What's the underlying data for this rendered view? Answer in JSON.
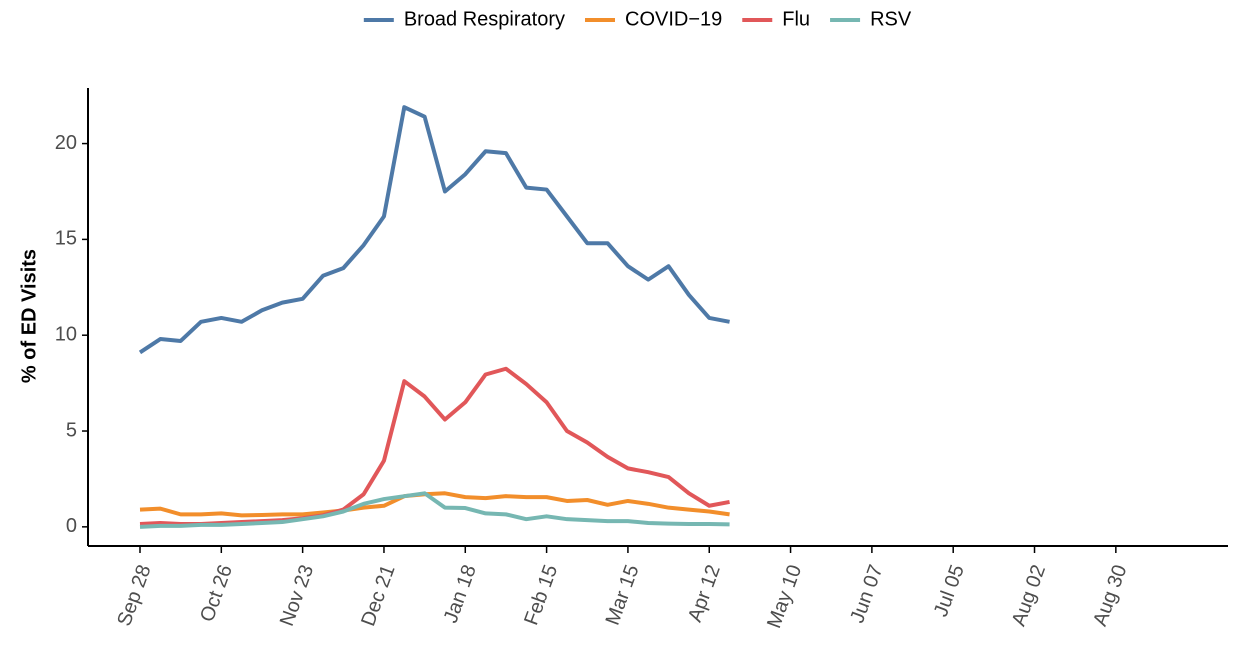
{
  "chart_data": {
    "type": "line",
    "y_label": "% of ED Visits",
    "categories": [
      "Sep 28",
      null,
      null,
      null,
      "Oct 26",
      null,
      null,
      null,
      "Nov 23",
      null,
      null,
      null,
      "Dec 21",
      null,
      null,
      null,
      "Jan 18",
      null,
      null,
      null,
      "Feb 15",
      null,
      null,
      null,
      "Mar 15",
      null,
      null,
      null,
      "Apr 12",
      null,
      null,
      null,
      "May 10",
      null,
      null,
      null,
      "Jun 07",
      null,
      null,
      null,
      "Jul 05",
      null,
      null,
      null,
      "Aug 02",
      null,
      null,
      null,
      "Aug 30"
    ],
    "series": [
      {
        "name": "Broad Respiratory",
        "color": "#4e79a7",
        "values": [
          9.1,
          9.8,
          9.7,
          10.7,
          10.9,
          10.7,
          11.3,
          11.7,
          11.9,
          13.1,
          13.5,
          14.7,
          16.2,
          21.9,
          21.4,
          17.5,
          18.4,
          19.6,
          19.5,
          17.7,
          17.6,
          16.2,
          14.8,
          14.8,
          13.6,
          12.9,
          13.6,
          12.1,
          10.9,
          10.7,
          null,
          null,
          null,
          null,
          null,
          null,
          null,
          null,
          null,
          null,
          null,
          null,
          null,
          null,
          null,
          null,
          null,
          null,
          null
        ]
      },
      {
        "name": "COVID−19",
        "color": "#f28e2b",
        "values": [
          0.9,
          0.95,
          0.65,
          0.65,
          0.7,
          0.6,
          0.62,
          0.65,
          0.65,
          0.75,
          0.85,
          1.0,
          1.1,
          1.6,
          1.7,
          1.75,
          1.55,
          1.5,
          1.6,
          1.55,
          1.55,
          1.35,
          1.4,
          1.15,
          1.35,
          1.2,
          1.0,
          0.9,
          0.8,
          0.65,
          null,
          null,
          null,
          null,
          null,
          null,
          null,
          null,
          null,
          null,
          null,
          null,
          null,
          null,
          null,
          null,
          null,
          null,
          null
        ]
      },
      {
        "name": "Flu",
        "color": "#e15759",
        "values": [
          0.15,
          0.2,
          0.15,
          0.15,
          0.2,
          0.25,
          0.3,
          0.35,
          0.45,
          0.6,
          0.9,
          1.7,
          3.45,
          7.6,
          6.8,
          5.6,
          6.5,
          7.95,
          8.25,
          7.45,
          6.5,
          5.0,
          4.4,
          3.65,
          3.05,
          2.85,
          2.6,
          1.75,
          1.1,
          1.3,
          null,
          null,
          null,
          null,
          null,
          null,
          null,
          null,
          null,
          null,
          null,
          null,
          null,
          null,
          null,
          null,
          null,
          null,
          null
        ]
      },
      {
        "name": "RSV",
        "color": "#76b7b2",
        "values": [
          0.0,
          0.05,
          0.05,
          0.1,
          0.1,
          0.15,
          0.2,
          0.25,
          0.4,
          0.55,
          0.8,
          1.2,
          1.45,
          1.6,
          1.75,
          1.0,
          0.98,
          0.7,
          0.65,
          0.4,
          0.55,
          0.4,
          0.35,
          0.3,
          0.3,
          0.2,
          0.17,
          0.15,
          0.15,
          0.13,
          null,
          null,
          null,
          null,
          null,
          null,
          null,
          null,
          null,
          null,
          null,
          null,
          null,
          null,
          null,
          null,
          null,
          null,
          null
        ]
      }
    ],
    "ylim": [
      -1.0,
      22.9
    ],
    "yticks": [
      0,
      5,
      10,
      15,
      20
    ],
    "grid": false,
    "legend": "top"
  }
}
